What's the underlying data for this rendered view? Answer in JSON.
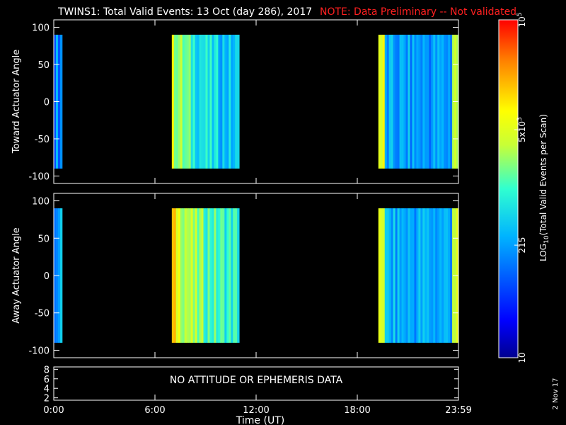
{
  "title": "TWINS1: Total Valid Events: 13 Oct (day 286), 2017",
  "note": "NOTE: Data Preliminary -- Not validated",
  "date_stamp": "2 Nov 17",
  "colors": {
    "background": "#000000",
    "axes": "#ffffff",
    "note": "#ff2020"
  },
  "chart_data": [
    {
      "type": "heatmap",
      "name": "toward",
      "ylabel": "Toward Actuator Angle",
      "ylim": [
        -110,
        110
      ],
      "yticks": [
        100,
        50,
        0,
        -50,
        -100
      ],
      "ytick_labels": [
        "100",
        "50",
        "0",
        "-50",
        "-100"
      ],
      "xlim": [
        0,
        24
      ],
      "data_yrange": [
        -90,
        90
      ],
      "segments": [
        {
          "x": [
            0.0,
            0.5
          ],
          "value": 160
        },
        {
          "x": [
            7.0,
            11.0
          ],
          "value": 600
        },
        {
          "x": [
            19.25,
            24.0
          ],
          "value": 200
        }
      ]
    },
    {
      "type": "heatmap",
      "name": "away",
      "ylabel": "Away Actuator Angle",
      "ylim": [
        -110,
        110
      ],
      "yticks": [
        100,
        50,
        0,
        -50,
        -100
      ],
      "ytick_labels": [
        "100",
        "50",
        "0",
        "-50",
        "-100"
      ],
      "xlim": [
        0,
        24
      ],
      "data_yrange": [
        -90,
        90
      ],
      "segments": [
        {
          "x": [
            0.0,
            0.5
          ],
          "value": 200
        },
        {
          "x": [
            7.0,
            11.0
          ],
          "value": 1500
        },
        {
          "x": [
            19.25,
            24.0
          ],
          "value": 250
        }
      ]
    },
    {
      "type": "line",
      "name": "ephemeris",
      "xlim": [
        0,
        24
      ],
      "ylim": [
        1.5,
        8.5
      ],
      "yticks": [
        8,
        6,
        4,
        2
      ],
      "ytick_labels": [
        "8",
        "6",
        "4",
        "2"
      ],
      "message": "NO ATTITUDE OR EPHEMERIS DATA",
      "xlabel": "Time (UT)",
      "xticks": [
        0,
        6,
        12,
        18,
        24
      ],
      "xtick_labels": [
        "0:00",
        "6:00",
        "12:00",
        "18:00",
        "23:59"
      ]
    }
  ],
  "colorbar": {
    "label": "LOG10(Total Valid Events per Scan)",
    "scale": "log",
    "range": [
      10,
      100000
    ],
    "ticks": [
      {
        "value": 100000,
        "label": "10^5"
      },
      {
        "value": 5000,
        "label": "5x10^3"
      },
      {
        "value": 215,
        "label": "215"
      },
      {
        "value": 10,
        "label": "10"
      }
    ]
  }
}
